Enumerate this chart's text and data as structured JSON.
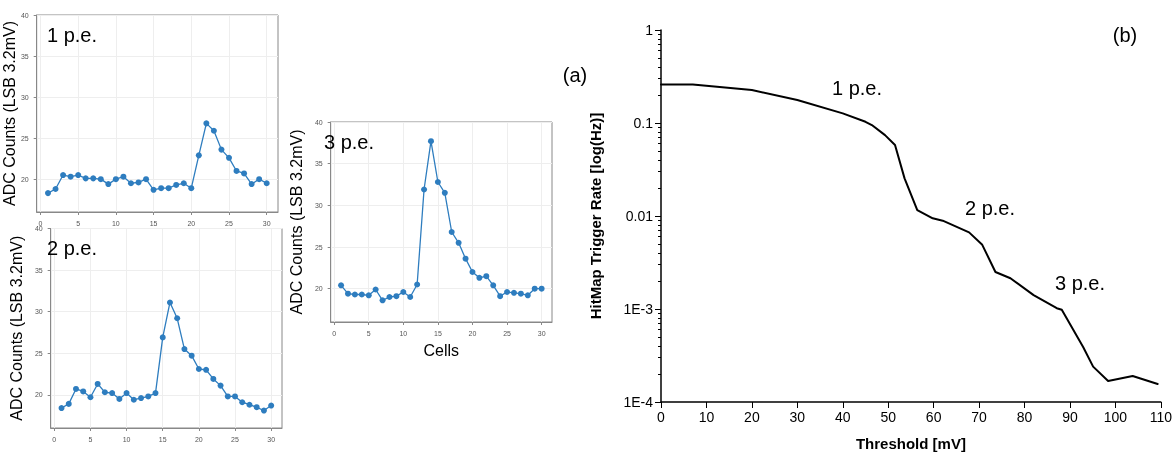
{
  "chart_data": [
    {
      "type": "line",
      "title": "1 p.e.",
      "ylabel": "ADC Counts (LSB 3.2mV)",
      "annotations": [
        "(a)"
      ],
      "x": [
        1,
        2,
        3,
        4,
        5,
        6,
        7,
        8,
        9,
        10,
        11,
        12,
        13,
        14,
        15,
        16,
        17,
        18,
        19,
        20,
        21,
        22,
        23,
        24,
        25,
        26,
        27,
        28,
        29,
        30
      ],
      "series": [
        {
          "color": "#2e7dbf",
          "values": [
            18.3,
            18.8,
            20.5,
            20.3,
            20.5,
            20.1,
            20.1,
            20.0,
            19.4,
            20.0,
            20.3,
            19.5,
            19.6,
            20.0,
            18.7,
            18.9,
            18.9,
            19.3,
            19.5,
            18.9,
            22.9,
            26.8,
            25.9,
            23.6,
            22.6,
            21.0,
            20.7,
            19.4,
            20.0,
            19.5
          ]
        }
      ],
      "xlim": [
        -0.5,
        31.5
      ],
      "xticks": [
        0,
        5,
        10,
        15,
        20,
        25,
        30
      ],
      "ylim": [
        16,
        40
      ],
      "yticks": [
        20,
        25,
        30,
        35,
        40
      ],
      "grid": true,
      "marker": "circle"
    },
    {
      "type": "line",
      "title": "2 p.e.",
      "ylabel": "ADC Counts (LSB 3.2mV)",
      "x": [
        1,
        2,
        3,
        4,
        5,
        6,
        7,
        8,
        9,
        10,
        11,
        12,
        13,
        14,
        15,
        16,
        17,
        18,
        19,
        20,
        21,
        22,
        23,
        24,
        25,
        26,
        27,
        28,
        29,
        30
      ],
      "series": [
        {
          "color": "#2e7dbf",
          "values": [
            18.4,
            18.9,
            20.7,
            20.4,
            19.7,
            21.3,
            20.3,
            20.2,
            19.5,
            20.2,
            19.4,
            19.6,
            19.8,
            20.2,
            26.9,
            31.1,
            29.2,
            25.5,
            24.7,
            23.1,
            23.0,
            21.9,
            21.1,
            19.8,
            19.8,
            19.1,
            18.8,
            18.5,
            18.1,
            18.7
          ]
        }
      ],
      "xlim": [
        -0.5,
        31.5
      ],
      "xticks": [
        0,
        5,
        10,
        15,
        20,
        25,
        30
      ],
      "ylim": [
        16,
        40
      ],
      "yticks": [
        20,
        25,
        30,
        35,
        40
      ],
      "grid": true,
      "marker": "circle"
    },
    {
      "type": "line",
      "title": "3 p.e.",
      "xlabel": "Cells",
      "ylabel": "ADC Counts (LSB 3.2mV)",
      "x": [
        1,
        2,
        3,
        4,
        5,
        6,
        7,
        8,
        9,
        10,
        11,
        12,
        13,
        14,
        15,
        16,
        17,
        18,
        19,
        20,
        21,
        22,
        23,
        24,
        25,
        26,
        27,
        28,
        29,
        30
      ],
      "series": [
        {
          "color": "#2e7dbf",
          "values": [
            20.4,
            19.4,
            19.3,
            19.3,
            19.2,
            19.9,
            18.6,
            19.0,
            19.1,
            19.6,
            19.0,
            20.5,
            31.9,
            37.7,
            32.8,
            31.5,
            26.8,
            25.5,
            23.6,
            22.0,
            21.3,
            21.5,
            20.4,
            19.1,
            19.6,
            19.5,
            19.4,
            19.2,
            20.0,
            20.0
          ]
        }
      ],
      "xlim": [
        -0.5,
        31.5
      ],
      "xticks": [
        0,
        5,
        10,
        15,
        20,
        25,
        30
      ],
      "ylim": [
        16,
        40
      ],
      "yticks": [
        20,
        25,
        30,
        35,
        40
      ],
      "grid": true,
      "marker": "circle"
    },
    {
      "type": "line",
      "xlabel": "Threshold [mV]",
      "ylabel": "HitMap Trigger Rate [log(Hz)]",
      "annotations": [
        "(b)",
        "1 p.e.",
        "2 p.e.",
        "3 p.e."
      ],
      "x": [
        0,
        7,
        20,
        30,
        40,
        45,
        46.4,
        49.3,
        51.5,
        53.6,
        56.4,
        59.8,
        62,
        67.8,
        70.7,
        73.6,
        76.9,
        82,
        87.1,
        88.2,
        92.9,
        95.1,
        98.4,
        103.8,
        109.3
      ],
      "series": [
        {
          "color": "#000000",
          "values": [
            0.26,
            0.26,
            0.226,
            0.177,
            0.127,
            0.103,
            0.095,
            0.074,
            0.058,
            0.0254,
            0.0116,
            0.00944,
            0.0089,
            0.00667,
            0.0049,
            0.0025,
            0.00214,
            0.00141,
            0.00102,
            0.00098,
            0.00039,
            0.00024,
            0.000168,
            0.00019,
            0.000156
          ]
        }
      ],
      "xlim": [
        0,
        110
      ],
      "xticks": [
        0,
        10,
        20,
        30,
        40,
        50,
        60,
        70,
        80,
        90,
        100,
        110
      ],
      "ylim": [
        0.0001,
        1
      ],
      "yticks": [
        {
          "value": 0.0001,
          "label": "1E-4"
        },
        {
          "value": 0.001,
          "label": "1E-3"
        },
        {
          "value": 0.01,
          "label": "0.01"
        },
        {
          "value": 0.1,
          "label": "0.1"
        },
        {
          "value": 1,
          "label": "1"
        }
      ],
      "log": "y",
      "grid": false,
      "marker": "none"
    }
  ]
}
